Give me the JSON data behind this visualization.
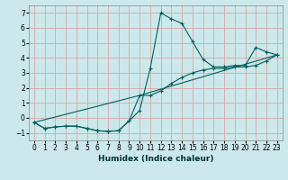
{
  "xlabel": "Humidex (Indice chaleur)",
  "background_color": "#cce8ea",
  "grid_color": "#d4a8a8",
  "line_color": "#006060",
  "xlim": [
    -0.5,
    23.5
  ],
  "ylim": [
    -1.5,
    7.5
  ],
  "xticks": [
    0,
    1,
    2,
    3,
    4,
    5,
    6,
    7,
    8,
    9,
    10,
    11,
    12,
    13,
    14,
    15,
    16,
    17,
    18,
    19,
    20,
    21,
    22,
    23
  ],
  "yticks": [
    -1,
    0,
    1,
    2,
    3,
    4,
    5,
    6,
    7
  ],
  "series1_x": [
    0,
    1,
    2,
    3,
    4,
    5,
    6,
    7,
    8,
    9,
    10,
    11,
    12,
    13,
    14,
    15,
    16,
    17,
    18,
    19,
    20,
    21,
    22,
    23
  ],
  "series1_y": [
    -0.3,
    -0.7,
    -0.6,
    -0.55,
    -0.55,
    -0.7,
    -0.85,
    -0.9,
    -0.85,
    -0.2,
    0.5,
    3.3,
    7.0,
    6.6,
    6.3,
    5.1,
    3.9,
    3.4,
    3.4,
    3.5,
    3.5,
    4.7,
    4.4,
    4.2
  ],
  "series2_x": [
    0,
    1,
    2,
    3,
    4,
    5,
    6,
    7,
    8,
    9,
    10,
    11,
    12,
    13,
    14,
    15,
    16,
    17,
    18,
    19,
    20,
    21,
    22,
    23
  ],
  "series2_y": [
    -0.3,
    -0.7,
    -0.6,
    -0.55,
    -0.55,
    -0.7,
    -0.85,
    -0.9,
    -0.85,
    -0.2,
    1.5,
    1.5,
    1.8,
    2.3,
    2.7,
    3.0,
    3.2,
    3.3,
    3.3,
    3.4,
    3.4,
    3.5,
    3.8,
    4.2
  ],
  "series3_x": [
    0,
    10,
    23
  ],
  "series3_y": [
    -0.3,
    1.5,
    4.2
  ]
}
